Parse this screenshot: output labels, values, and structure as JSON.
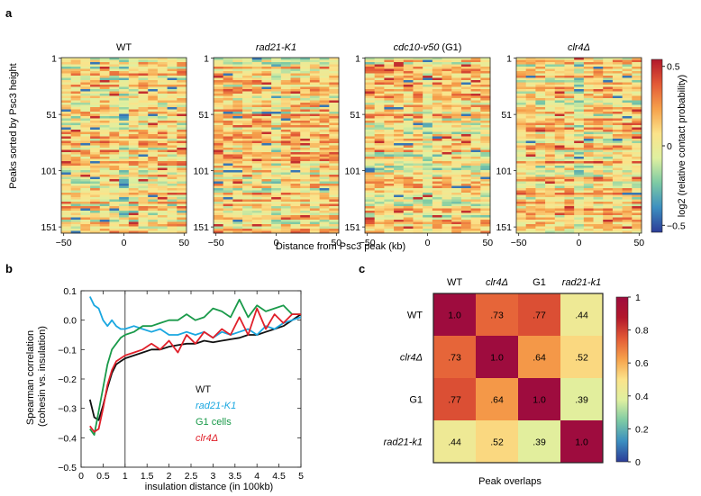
{
  "panel_a": {
    "label": "a",
    "heatmaps": [
      {
        "title": "WT",
        "italic": false,
        "seed": 11
      },
      {
        "title": "rad21-K1",
        "italic": true,
        "seed": 23
      },
      {
        "title": "cdc10-v50",
        "title_suffix": " (G1)",
        "italic": true,
        "seed": 37
      },
      {
        "title": "clr4Δ",
        "italic": true,
        "seed": 49
      }
    ],
    "y_ticks": [
      "1",
      "51",
      "101",
      "151"
    ],
    "x_ticks": [
      "−50",
      "0",
      "50"
    ],
    "ylabel": "Peaks sorted by Psc3 height",
    "xlabel": "Distance from Psc3 peak (kb)",
    "colorbar": {
      "ticks": [
        "0.5",
        "0",
        "−0.5"
      ],
      "label": "log2 (relative contact probability)",
      "colors": [
        "#b2182b",
        "#e35a36",
        "#f6a14b",
        "#fbe38a",
        "#dff0a0",
        "#7dcaa4",
        "#3c8fc0",
        "#2c3c98"
      ]
    }
  },
  "panel_b": {
    "label": "b",
    "chart_data": {
      "type": "line",
      "xlabel": "insulation distance (in 100kb)",
      "ylabel": "Spearman correlation (cohesin vs. insulation)",
      "xlim": [
        0,
        5
      ],
      "ylim": [
        -0.5,
        0.1
      ],
      "x_ticks": [
        "0",
        "0.5",
        "1",
        "1.5",
        "2",
        "2.5",
        "3",
        "3.5",
        "4",
        "4.5",
        "5"
      ],
      "y_ticks": [
        "0.1",
        "0.0",
        "−0.1",
        "−0.2",
        "−0.3",
        "−0.4",
        "−0.5"
      ],
      "vline": 1,
      "series": [
        {
          "name": "WT",
          "color": "#111111",
          "x": [
            0.2,
            0.3,
            0.4,
            0.5,
            0.6,
            0.7,
            0.8,
            0.9,
            1.0,
            1.2,
            1.4,
            1.6,
            1.8,
            2.0,
            2.2,
            2.4,
            2.6,
            2.8,
            3.0,
            3.2,
            3.4,
            3.6,
            3.8,
            4.0,
            4.2,
            4.4,
            4.6,
            4.8,
            5.0
          ],
          "y": [
            -0.27,
            -0.33,
            -0.34,
            -0.29,
            -0.23,
            -0.18,
            -0.15,
            -0.14,
            -0.13,
            -0.12,
            -0.11,
            -0.1,
            -0.1,
            -0.09,
            -0.085,
            -0.08,
            -0.08,
            -0.07,
            -0.075,
            -0.07,
            -0.065,
            -0.06,
            -0.05,
            -0.05,
            -0.04,
            -0.03,
            -0.02,
            0.0,
            0.02
          ]
        },
        {
          "name": "rad21-K1",
          "color": "#1aa7e0",
          "x": [
            0.2,
            0.3,
            0.4,
            0.5,
            0.6,
            0.7,
            0.8,
            0.9,
            1.0,
            1.2,
            1.4,
            1.6,
            1.8,
            2.0,
            2.2,
            2.4,
            2.6,
            2.8,
            3.0,
            3.2,
            3.4,
            3.6,
            3.8,
            4.0,
            4.2,
            4.4,
            4.6,
            4.8,
            5.0
          ],
          "y": [
            0.08,
            0.05,
            0.04,
            0.0,
            -0.02,
            0.0,
            -0.02,
            -0.03,
            -0.03,
            -0.02,
            -0.03,
            -0.04,
            -0.03,
            -0.05,
            -0.05,
            -0.04,
            -0.05,
            -0.04,
            -0.06,
            -0.04,
            -0.05,
            -0.04,
            -0.03,
            -0.05,
            -0.02,
            -0.03,
            -0.01,
            0.0,
            0.01
          ]
        },
        {
          "name": "G1 cells",
          "color": "#1a9a4a",
          "x": [
            0.2,
            0.3,
            0.4,
            0.5,
            0.6,
            0.7,
            0.8,
            0.9,
            1.0,
            1.2,
            1.4,
            1.6,
            1.8,
            2.0,
            2.2,
            2.4,
            2.6,
            2.8,
            3.0,
            3.2,
            3.4,
            3.6,
            3.8,
            4.0,
            4.2,
            4.4,
            4.6,
            4.8,
            5.0
          ],
          "y": [
            -0.37,
            -0.39,
            -0.31,
            -0.23,
            -0.15,
            -0.1,
            -0.08,
            -0.06,
            -0.05,
            -0.04,
            -0.02,
            -0.02,
            -0.01,
            0.0,
            0.0,
            0.02,
            0.0,
            0.01,
            0.04,
            0.03,
            0.01,
            0.07,
            0.01,
            0.05,
            0.03,
            0.04,
            0.05,
            0.02,
            0.02
          ]
        },
        {
          "name": "clr4Δ",
          "color": "#e0202a",
          "x": [
            0.2,
            0.3,
            0.4,
            0.5,
            0.6,
            0.7,
            0.8,
            0.9,
            1.0,
            1.2,
            1.4,
            1.6,
            1.8,
            2.0,
            2.2,
            2.4,
            2.6,
            2.8,
            3.0,
            3.2,
            3.4,
            3.6,
            3.8,
            4.0,
            4.2,
            4.4,
            4.6,
            4.8,
            5.0
          ],
          "y": [
            -0.36,
            -0.38,
            -0.37,
            -0.3,
            -0.22,
            -0.17,
            -0.14,
            -0.13,
            -0.12,
            -0.11,
            -0.1,
            -0.08,
            -0.1,
            -0.07,
            -0.11,
            -0.05,
            -0.08,
            -0.04,
            -0.06,
            -0.03,
            -0.05,
            0.01,
            -0.05,
            0.04,
            -0.03,
            0.02,
            -0.01,
            0.02,
            0.02
          ]
        }
      ]
    },
    "legend_italic": [
      false,
      true,
      false,
      true
    ]
  },
  "panel_c": {
    "label": "c",
    "chart_data": {
      "type": "heatmap",
      "labels": [
        "WT",
        "clr4Δ",
        "G1",
        "rad21-k1"
      ],
      "label_italic": [
        false,
        true,
        false,
        true
      ],
      "values": [
        [
          1.0,
          0.73,
          0.77,
          0.44
        ],
        [
          0.73,
          1.0,
          0.64,
          0.52
        ],
        [
          0.77,
          0.64,
          1.0,
          0.39
        ],
        [
          0.44,
          0.52,
          0.39,
          1.0
        ]
      ],
      "cell_text": [
        [
          "1.0",
          ".73",
          ".77",
          ".44"
        ],
        [
          ".73",
          "1.0",
          ".64",
          ".52"
        ],
        [
          ".77",
          ".64",
          "1.0",
          ".39"
        ],
        [
          ".44",
          ".52",
          ".39",
          "1.0"
        ]
      ],
      "xlabel": "Peak overlaps",
      "colorbar_ticks": [
        "1",
        "0.8",
        "0.6",
        "0.4",
        "0.2",
        "0"
      ]
    }
  }
}
